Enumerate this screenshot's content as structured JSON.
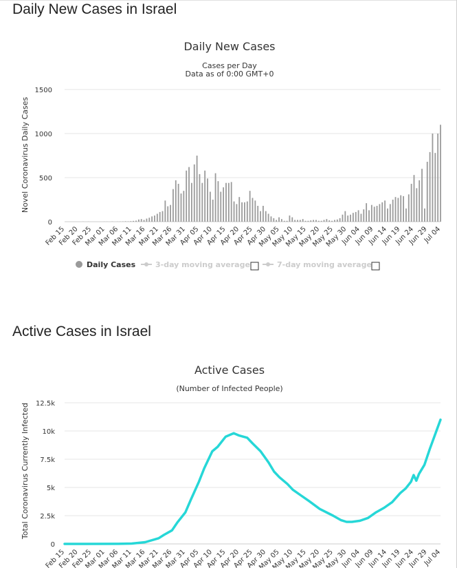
{
  "sections": [
    {
      "heading": "Daily New Cases in Israel"
    },
    {
      "heading": "Active Cases in Israel"
    }
  ],
  "chart_data": [
    {
      "type": "bar",
      "title": "Daily New Cases",
      "subtitle_lines": [
        "Cases per Day",
        "Data as of 0:00 GMT+0"
      ],
      "ylabel": "Novel Coronavirus Daily Cases",
      "xlabel": "",
      "ylim": [
        0,
        1500
      ],
      "yticks": [
        "0",
        "500",
        "1000",
        "1500"
      ],
      "ytick_values": [
        0,
        500,
        1000,
        1500
      ],
      "grid": true,
      "color": "#9a9a9a",
      "x_tick_labels": [
        "Feb 15",
        "Feb 20",
        "Feb 25",
        "Mar 01",
        "Mar 06",
        "Mar 11",
        "Mar 16",
        "Mar 21",
        "Mar 26",
        "Mar 31",
        "Apr 05",
        "Apr 10",
        "Apr 15",
        "Apr 20",
        "Apr 25",
        "Apr 30",
        "May 05",
        "May 10",
        "May 15",
        "May 20",
        "May 25",
        "May 30",
        "Jun 04",
        "Jun 09",
        "Jun 14",
        "Jun 19",
        "Jun 24",
        "Jun 29",
        "Jul 04"
      ],
      "legend": {
        "position": "bottom-center",
        "items": [
          {
            "label": "Daily Cases",
            "active": true
          },
          {
            "label": "3-day moving average",
            "active": false
          },
          {
            "label": "7-day moving average",
            "active": false
          }
        ]
      },
      "x_start": "Feb 15",
      "x_end": "Jul 04",
      "series": [
        {
          "name": "Daily Cases",
          "values": [
            0,
            0,
            0,
            0,
            0,
            0,
            0,
            1,
            0,
            1,
            0,
            0,
            0,
            0,
            0,
            1,
            1,
            0,
            2,
            0,
            1,
            2,
            3,
            5,
            4,
            6,
            9,
            12,
            25,
            30,
            20,
            35,
            45,
            60,
            70,
            90,
            110,
            120,
            240,
            175,
            190,
            370,
            470,
            430,
            320,
            350,
            580,
            620,
            440,
            650,
            750,
            540,
            440,
            580,
            490,
            340,
            250,
            550,
            460,
            340,
            390,
            440,
            440,
            450,
            230,
            200,
            280,
            220,
            220,
            230,
            350,
            270,
            240,
            180,
            120,
            180,
            120,
            90,
            60,
            40,
            20,
            50,
            30,
            10,
            10,
            70,
            50,
            20,
            20,
            20,
            30,
            10,
            10,
            15,
            20,
            20,
            10,
            10,
            20,
            30,
            15,
            10,
            20,
            25,
            40,
            80,
            120,
            70,
            80,
            100,
            110,
            130,
            90,
            140,
            210,
            130,
            190,
            170,
            180,
            200,
            220,
            240,
            150,
            200,
            250,
            280,
            270,
            300,
            290,
            150,
            310,
            430,
            530,
            380,
            470,
            600,
            150,
            680,
            790,
            1000,
            780,
            1000,
            1100
          ]
        }
      ]
    },
    {
      "type": "line",
      "title": "Active Cases",
      "subtitle": "(Number of Infected People)",
      "ylabel": "Total Coronavirus Currently Infected",
      "xlabel": "",
      "ylim": [
        0,
        12500
      ],
      "yticks": [
        "0",
        "2.5k",
        "5k",
        "7.5k",
        "10k",
        "12.5k"
      ],
      "ytick_values": [
        0,
        2500,
        5000,
        7500,
        10000,
        12500
      ],
      "grid": true,
      "color": "#26d7d7",
      "x_tick_labels": [
        "Feb 15",
        "Feb 20",
        "Feb 25",
        "Mar 01",
        "Mar 06",
        "Mar 11",
        "Mar 16",
        "Mar 21",
        "Mar 26",
        "Mar 31",
        "Apr 05",
        "Apr 10",
        "Apr 15",
        "Apr 20",
        "Apr 25",
        "Apr 30",
        "May 05",
        "May 10",
        "May 15",
        "May 20",
        "May 25",
        "May 30",
        "Jun 04",
        "Jun 09",
        "Jun 14",
        "Jun 19",
        "Jun 24",
        "Jun 29",
        "Jul 04"
      ],
      "x_start": "Feb 15",
      "x_end": "Jul 04",
      "series": [
        {
          "name": "Active Cases",
          "points": [
            [
              "Feb 15",
              0
            ],
            [
              "Mar 06",
              5
            ],
            [
              "Mar 11",
              30
            ],
            [
              "Mar 16",
              150
            ],
            [
              "Mar 21",
              500
            ],
            [
              "Mar 23",
              800
            ],
            [
              "Mar 26",
              1200
            ],
            [
              "Mar 28",
              1900
            ],
            [
              "Mar 31",
              2800
            ],
            [
              "Apr 02",
              3900
            ],
            [
              "Apr 05",
              5500
            ],
            [
              "Apr 07",
              6700
            ],
            [
              "Apr 10",
              8200
            ],
            [
              "Apr 12",
              8600
            ],
            [
              "Apr 15",
              9500
            ],
            [
              "Apr 18",
              9800
            ],
            [
              "Apr 20",
              9600
            ],
            [
              "Apr 23",
              9400
            ],
            [
              "Apr 25",
              8900
            ],
            [
              "Apr 28",
              8200
            ],
            [
              "May 01",
              7200
            ],
            [
              "May 03",
              6400
            ],
            [
              "May 05",
              5900
            ],
            [
              "May 08",
              5300
            ],
            [
              "May 10",
              4800
            ],
            [
              "May 13",
              4300
            ],
            [
              "May 16",
              3800
            ],
            [
              "May 20",
              3100
            ],
            [
              "May 25",
              2500
            ],
            [
              "May 28",
              2100
            ],
            [
              "May 30",
              1950
            ],
            [
              "Jun 01",
              1950
            ],
            [
              "Jun 04",
              2050
            ],
            [
              "Jun 07",
              2300
            ],
            [
              "Jun 10",
              2800
            ],
            [
              "Jun 13",
              3200
            ],
            [
              "Jun 16",
              3700
            ],
            [
              "Jun 19",
              4500
            ],
            [
              "Jun 21",
              4900
            ],
            [
              "Jun 23",
              5500
            ],
            [
              "Jun 24",
              6100
            ],
            [
              "Jun 25",
              5600
            ],
            [
              "Jun 26",
              6200
            ],
            [
              "Jun 28",
              7000
            ],
            [
              "Jun 30",
              8400
            ],
            [
              "Jul 02",
              9700
            ],
            [
              "Jul 04",
              11000
            ]
          ]
        }
      ]
    }
  ]
}
